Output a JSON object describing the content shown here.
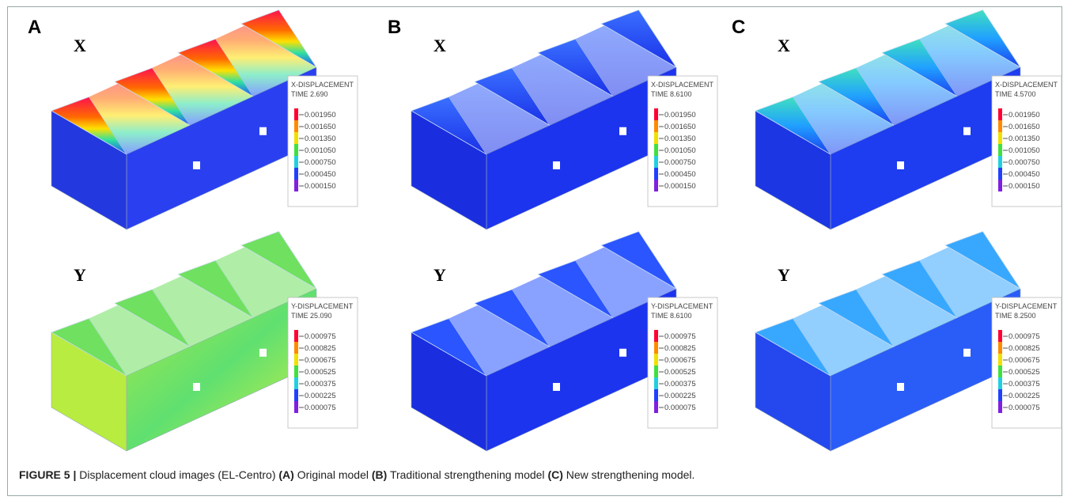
{
  "panels": [
    {
      "letter": "A",
      "plots": [
        {
          "axis": "X",
          "legend_title": "X-DISPLACEMENT",
          "time": "TIME 2.690",
          "legend": [
            "0.001950",
            "0.001650",
            "0.001350",
            "0.001050",
            "0.000750",
            "0.000450",
            "0.000150"
          ]
        },
        {
          "axis": "Y",
          "legend_title": "Y-DISPLACEMENT",
          "time": "TIME 25.090",
          "legend": [
            "0.000975",
            "0.000825",
            "0.000675",
            "0.000525",
            "0.000375",
            "0.000225",
            "0.000075"
          ]
        }
      ]
    },
    {
      "letter": "B",
      "plots": [
        {
          "axis": "X",
          "legend_title": "X-DISPLACEMENT",
          "time": "TIME 8.6100",
          "legend": [
            "0.001950",
            "0.001650",
            "0.001350",
            "0.001050",
            "0.000750",
            "0.000450",
            "0.000150"
          ]
        },
        {
          "axis": "Y",
          "legend_title": "Y-DISPLACEMENT",
          "time": "TIME 8.6100",
          "legend": [
            "0.000975",
            "0.000825",
            "0.000675",
            "0.000525",
            "0.000375",
            "0.000225",
            "0.000075"
          ]
        }
      ]
    },
    {
      "letter": "C",
      "plots": [
        {
          "axis": "X",
          "legend_title": "X-DISPLACEMENT",
          "time": "TIME 4.5700",
          "legend": [
            "0.001950",
            "0.001650",
            "0.001350",
            "0.001050",
            "0.000750",
            "0.000450",
            "0.000150"
          ]
        },
        {
          "axis": "Y",
          "legend_title": "Y-DISPLACEMENT",
          "time": "TIME 8.2500",
          "legend": [
            "0.000975",
            "0.000825",
            "0.000675",
            "0.000525",
            "0.000375",
            "0.000225",
            "0.000075"
          ]
        }
      ]
    }
  ],
  "caption": {
    "figure": "FIGURE 5 |",
    "text": "Displacement cloud images (EL-Centro)",
    "parts": [
      {
        "label": "(A)",
        "text": "Original model"
      },
      {
        "label": "(B)",
        "text": "Traditional strengthening model"
      },
      {
        "label": "(C)",
        "text": "New strengthening model."
      }
    ]
  }
}
